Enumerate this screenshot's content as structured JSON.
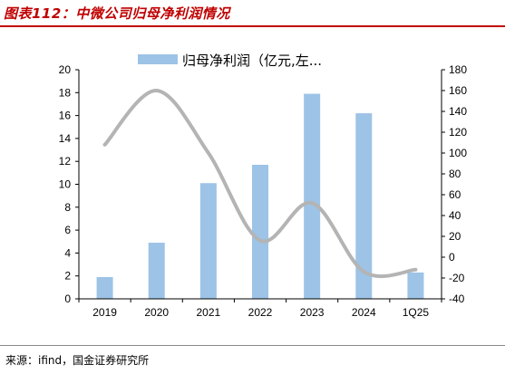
{
  "figure": {
    "title": "图表112：中微公司归母净利润情况",
    "source": "来源：ifind，国金证券研究所"
  },
  "colors": {
    "title": "#c00000",
    "bars": "#9dc3e6",
    "line": "#b4b4b4"
  },
  "chart_data": {
    "type": "bar+line",
    "title": "",
    "categories": [
      "2019",
      "2020",
      "2021",
      "2022",
      "2023",
      "2024",
      "1Q25"
    ],
    "legend_position": "top",
    "grid": false,
    "left_axis": {
      "min": 0,
      "max": 20,
      "ticks": [
        "0",
        "2",
        "4",
        "6",
        "8",
        "10",
        "12",
        "14",
        "16",
        "18",
        "20"
      ]
    },
    "right_axis": {
      "min": -40,
      "max": 180,
      "ticks": [
        "-40",
        "-20",
        "0",
        "20",
        "40",
        "60",
        "80",
        "100",
        "120",
        "140",
        "160",
        "180"
      ]
    },
    "series": [
      {
        "name": "归母净利润（亿元,左...",
        "kind": "bar",
        "axis": "left",
        "values": [
          1.9,
          4.9,
          10.1,
          11.7,
          17.9,
          16.2,
          2.3
        ]
      },
      {
        "name": "",
        "kind": "line",
        "axis": "right",
        "values": [
          108,
          160,
          100,
          16,
          52,
          -14,
          -12
        ]
      }
    ]
  }
}
